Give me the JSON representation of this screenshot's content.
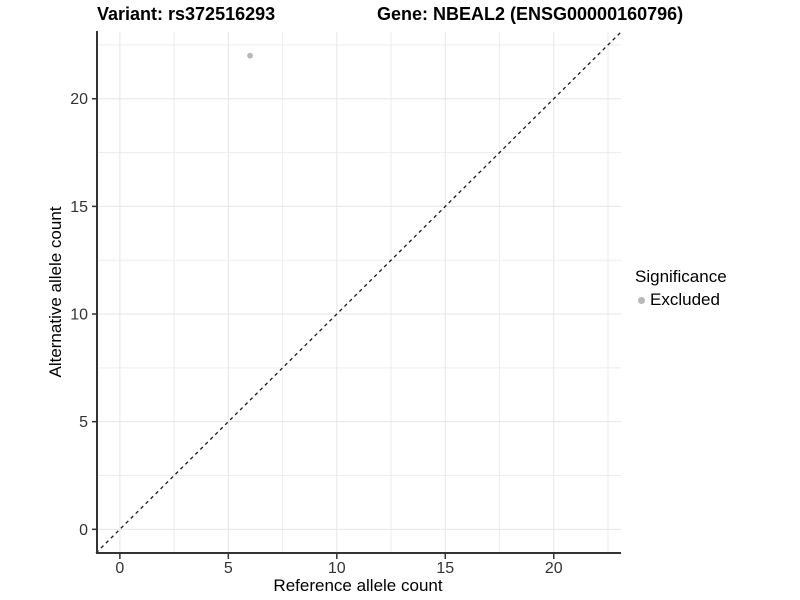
{
  "chart_data": {
    "type": "scatter",
    "titles": {
      "variant": "Variant: rs372516293",
      "gene": "Gene: NBEAL2 (ENSG00000160796)"
    },
    "xlabel": "Reference allele count",
    "ylabel": "Alternative allele count",
    "xlim": [
      -1.1,
      23.1
    ],
    "ylim": [
      -1.1,
      23.1
    ],
    "x_major_ticks": [
      0,
      5,
      10,
      15,
      20
    ],
    "x_minor_gridlines": [
      2.5,
      7.5,
      12.5,
      17.5,
      22.5
    ],
    "y_major_ticks": [
      0,
      5,
      10,
      15,
      20
    ],
    "y_minor_gridlines": [
      2.5,
      7.5,
      12.5,
      17.5,
      22.5
    ],
    "grid": "major+minor",
    "legend_position": "right",
    "legend": {
      "title": "Significance",
      "items": [
        {
          "label": "Excluded",
          "color": "#b8b8b8"
        }
      ]
    },
    "series": [
      {
        "name": "Excluded",
        "color": "#b8b8b8",
        "points": [
          {
            "x": 6,
            "y": 22
          }
        ]
      }
    ],
    "reference_line": {
      "slope": 1,
      "intercept": 0,
      "style": "dashed",
      "color": "#1a1a1a"
    }
  }
}
